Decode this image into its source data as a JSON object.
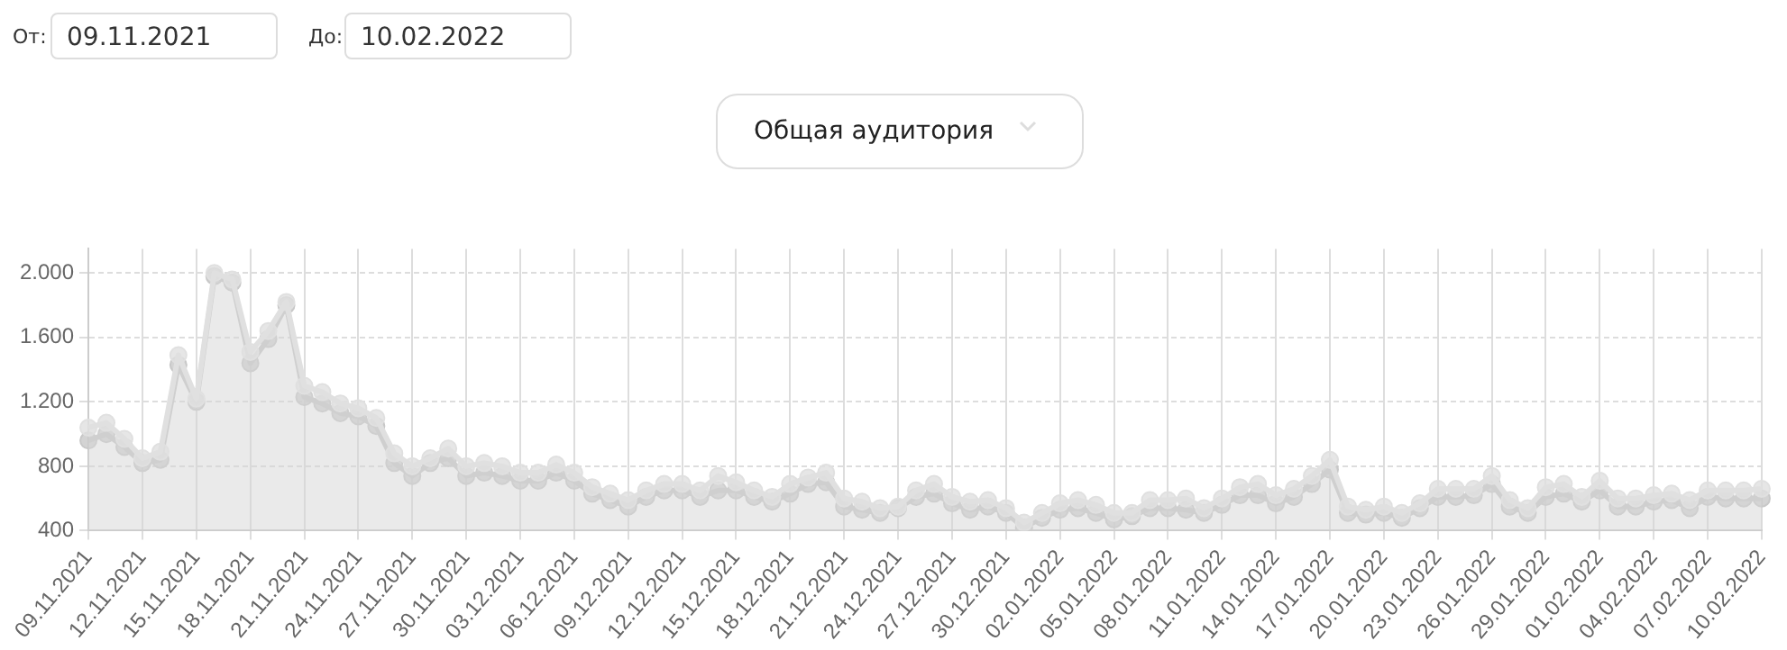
{
  "chart_data": {
    "type": "area",
    "annotations": [
      "От:",
      "09.11.2021",
      "До:",
      "10.02.2022",
      "Общая аудитория"
    ],
    "categories": [
      "09.11.2021",
      null,
      null,
      "12.11.2021",
      null,
      null,
      "15.11.2021",
      null,
      null,
      "18.11.2021",
      null,
      null,
      "21.11.2021",
      null,
      null,
      "24.11.2021",
      null,
      null,
      "27.11.2021",
      null,
      null,
      "30.11.2021",
      null,
      null,
      "03.12.2021",
      null,
      null,
      "06.12.2021",
      null,
      null,
      "09.12.2021",
      null,
      null,
      "12.12.2021",
      null,
      null,
      "15.12.2021",
      null,
      null,
      "18.12.2021",
      null,
      null,
      "21.12.2021",
      null,
      null,
      "24.12.2021",
      null,
      null,
      "27.12.2021",
      null,
      null,
      "30.12.2021",
      null,
      null,
      "02.01.2022",
      null,
      null,
      "05.01.2022",
      null,
      null,
      "08.01.2022",
      null,
      null,
      "11.01.2022",
      null,
      null,
      "14.01.2022",
      null,
      null,
      "17.01.2022",
      null,
      null,
      "20.01.2022",
      null,
      null,
      "23.01.2022",
      null,
      null,
      "26.01.2022",
      null,
      null,
      "29.01.2022",
      null,
      null,
      "01.02.2022",
      null,
      null,
      "04.02.2022",
      null,
      null,
      "07.02.2022",
      null,
      null,
      "10.02.2022"
    ],
    "series": [
      {
        "color": "#e0e0e0",
        "values": [
          1040,
          1070,
          970,
          850,
          890,
          1490,
          1220,
          2000,
          1960,
          1510,
          1640,
          1820,
          1300,
          1260,
          1190,
          1160,
          1100,
          880,
          800,
          850,
          910,
          800,
          820,
          800,
          760,
          760,
          810,
          760,
          670,
          630,
          590,
          650,
          690,
          690,
          650,
          740,
          700,
          650,
          610,
          690,
          730,
          760,
          600,
          580,
          540,
          550,
          650,
          690,
          610,
          580,
          590,
          540,
          450,
          510,
          570,
          590,
          560,
          510,
          510,
          590,
          590,
          600,
          540,
          600,
          670,
          690,
          620,
          660,
          740,
          840,
          550,
          530,
          550,
          510,
          570,
          660,
          660,
          660,
          740,
          590,
          540,
          670,
          690,
          610,
          710,
          600,
          600,
          620,
          630,
          590,
          650,
          650,
          650,
          660
        ]
      },
      {
        "color": "#c8c8c8",
        "values": [
          960,
          1000,
          920,
          820,
          840,
          1430,
          1200,
          1980,
          1940,
          1440,
          1590,
          1800,
          1230,
          1190,
          1130,
          1110,
          1050,
          820,
          740,
          820,
          850,
          740,
          760,
          740,
          710,
          710,
          760,
          710,
          630,
          590,
          550,
          610,
          650,
          650,
          610,
          650,
          650,
          610,
          580,
          630,
          690,
          700,
          550,
          530,
          510,
          540,
          610,
          630,
          570,
          530,
          550,
          510,
          420,
          480,
          530,
          540,
          510,
          470,
          490,
          540,
          540,
          530,
          510,
          560,
          620,
          620,
          570,
          610,
          690,
          780,
          510,
          500,
          510,
          480,
          540,
          610,
          610,
          620,
          690,
          550,
          510,
          610,
          630,
          580,
          650,
          550,
          550,
          580,
          590,
          540,
          610,
          600,
          600,
          600
        ]
      }
    ],
    "ylim": [
      400,
      2150
    ],
    "yticks": [
      400,
      800,
      {
        "value": 1200,
        "label": "1.200"
      },
      {
        "value": 1600,
        "label": "1.600"
      },
      {
        "value": 2000,
        "label": "2.000"
      }
    ],
    "grid": true,
    "legend": false,
    "marker": "circle",
    "line_style": "solid"
  }
}
